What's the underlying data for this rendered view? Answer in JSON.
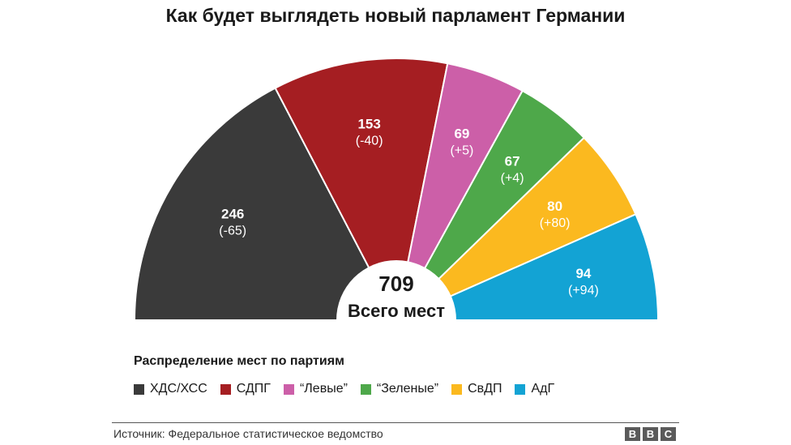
{
  "chart_data": {
    "type": "pie",
    "subtype": "semicircle",
    "title": "Как будет выглядеть новый парламент Германии",
    "total": {
      "value": "709",
      "label": "Всего мест"
    },
    "slices": [
      {
        "value": 246,
        "value_label": "246",
        "change": "(-65)",
        "color": "#3a3a3a",
        "party": "ХДС/ХСС"
      },
      {
        "value": 153,
        "value_label": "153",
        "change": "(-40)",
        "color": "#a51e22",
        "party": "СДПГ"
      },
      {
        "value": 69,
        "value_label": "69",
        "change": "(+5)",
        "color": "#cc5fa8",
        "party": "“Левые”"
      },
      {
        "value": 67,
        "value_label": "67",
        "change": "(+4)",
        "color": "#4ea84a",
        "party": "“Зеленые”"
      },
      {
        "value": 80,
        "value_label": "80",
        "change": "(+80)",
        "color": "#fbb91f",
        "party": "СвДП"
      },
      {
        "value": 94,
        "value_label": "94",
        "change": "(+94)",
        "color": "#13a3d4",
        "party": "АдГ"
      }
    ],
    "legend_title": "Распределение мест по партиям",
    "legend_position": "bottom"
  },
  "source": "Источник: Федеральное статистическое ведомство",
  "logo": [
    "B",
    "B",
    "C"
  ]
}
